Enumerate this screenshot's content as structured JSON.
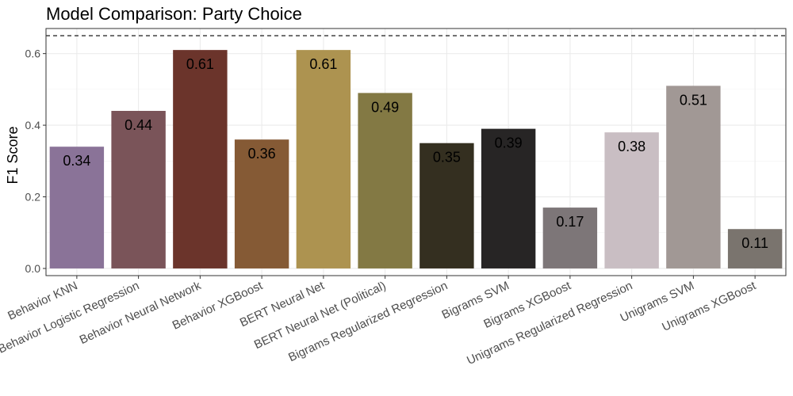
{
  "chart_data": {
    "type": "bar",
    "title": "Model Comparison: Party Choice",
    "xlabel": "",
    "ylabel": "F1 Score",
    "ylim": [
      -0.02,
      0.67
    ],
    "y_ticks": [
      0.0,
      0.2,
      0.4,
      0.6
    ],
    "y_tick_labels": [
      "0.0",
      "0.2",
      "0.4",
      "0.6"
    ],
    "grid": true,
    "reference_line": {
      "value": 0.65,
      "style": "dashed"
    },
    "categories": [
      "Behavior KNN",
      "Behavior Logistic Regression",
      "Behavior Neural Network",
      "Behavior XGBoost",
      "BERT Neural Net",
      "BERT Neural Net (Political)",
      "Bigrams Regularized Regression",
      "Bigrams SVM",
      "Bigrams XGBoost",
      "Unigrams Regularized Regression",
      "Unigrams SVM",
      "Unigrams XGBoost"
    ],
    "values": [
      0.34,
      0.44,
      0.61,
      0.36,
      0.61,
      0.49,
      0.35,
      0.39,
      0.17,
      0.38,
      0.51,
      0.11
    ],
    "data_labels": [
      "0.34",
      "0.44",
      "0.61",
      "0.36",
      "0.61",
      "0.49",
      "0.35",
      "0.39",
      "0.17",
      "0.38",
      "0.51",
      "0.11"
    ],
    "colors": [
      "#8a7398",
      "#7a5459",
      "#6b342b",
      "#855a35",
      "#ad9350",
      "#837944",
      "#342f20",
      "#272525",
      "#7d7678",
      "#c9bec3",
      "#a19895",
      "#7a746e"
    ]
  }
}
